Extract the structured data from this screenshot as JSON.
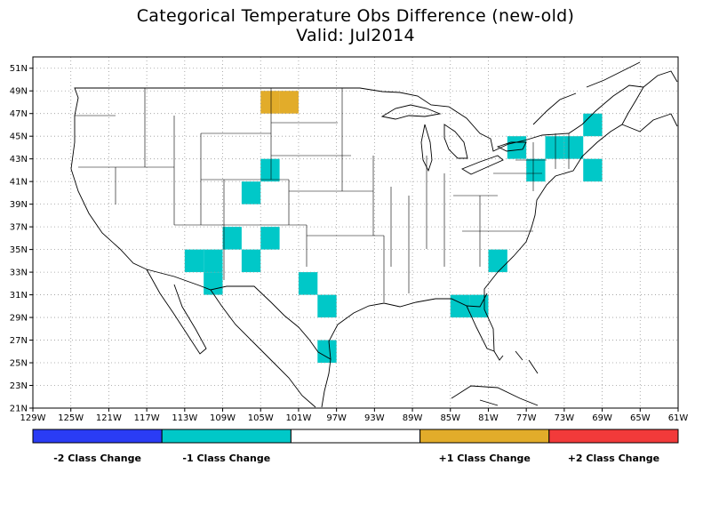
{
  "title": "Categorical Temperature Obs Difference (new-old)",
  "subtitle": "Valid: Jul2014",
  "colors": {
    "minus2": "#2a3cf5",
    "minus1": "#00c8c8",
    "zero": "#ffffff",
    "plus1": "#e2ac2a",
    "plus2": "#f23a3a",
    "grid": "#9a9a9a",
    "lines": "#000000"
  },
  "map": {
    "lon_range": [
      -129,
      -61
    ],
    "lat_range": [
      21,
      52
    ],
    "grid_spacing_deg": 2
  },
  "x_ticks": [
    "129W",
    "125W",
    "121W",
    "117W",
    "113W",
    "109W",
    "105W",
    "101W",
    "97W",
    "93W",
    "89W",
    "85W",
    "81W",
    "77W",
    "73W",
    "69W",
    "65W",
    "61W"
  ],
  "y_ticks": [
    "21N",
    "23N",
    "25N",
    "27N",
    "29N",
    "31N",
    "33N",
    "35N",
    "37N",
    "39N",
    "41N",
    "43N",
    "45N",
    "47N",
    "49N",
    "51N"
  ],
  "cells": [
    {
      "lon": -104,
      "lat": 48,
      "cat": "+1"
    },
    {
      "lon": -102,
      "lat": 48,
      "cat": "+1"
    },
    {
      "lon": -104,
      "lat": 42,
      "cat": "-1"
    },
    {
      "lon": -106,
      "lat": 40,
      "cat": "-1"
    },
    {
      "lon": -108,
      "lat": 36,
      "cat": "-1"
    },
    {
      "lon": -104,
      "lat": 36,
      "cat": "-1"
    },
    {
      "lon": -112,
      "lat": 34,
      "cat": "-1"
    },
    {
      "lon": -110,
      "lat": 34,
      "cat": "-1"
    },
    {
      "lon": -106,
      "lat": 34,
      "cat": "-1"
    },
    {
      "lon": -110,
      "lat": 32,
      "cat": "-1"
    },
    {
      "lon": -100,
      "lat": 32,
      "cat": "-1"
    },
    {
      "lon": -98,
      "lat": 30,
      "cat": "-1"
    },
    {
      "lon": -98,
      "lat": 26,
      "cat": "-1"
    },
    {
      "lon": -84,
      "lat": 30,
      "cat": "-1"
    },
    {
      "lon": -82,
      "lat": 30,
      "cat": "-1"
    },
    {
      "lon": -80,
      "lat": 34,
      "cat": "-1"
    },
    {
      "lon": -78,
      "lat": 44,
      "cat": "-1"
    },
    {
      "lon": -74,
      "lat": 44,
      "cat": "-1"
    },
    {
      "lon": -72,
      "lat": 44,
      "cat": "-1"
    },
    {
      "lon": -76,
      "lat": 42,
      "cat": "-1"
    },
    {
      "lon": -70,
      "lat": 46,
      "cat": "-1"
    },
    {
      "lon": -70,
      "lat": 42,
      "cat": "-1"
    }
  ],
  "legend": [
    {
      "cat": "-2",
      "label": "-2 Class Change",
      "color": "#2a3cf5"
    },
    {
      "cat": "-1",
      "label": "-1 Class Change",
      "color": "#00c8c8"
    },
    {
      "cat": "0",
      "label": "",
      "color": "#ffffff"
    },
    {
      "cat": "+1",
      "label": "+1 Class Change",
      "color": "#e2ac2a"
    },
    {
      "cat": "+2",
      "label": "+2 Class Change",
      "color": "#f23a3a"
    }
  ]
}
